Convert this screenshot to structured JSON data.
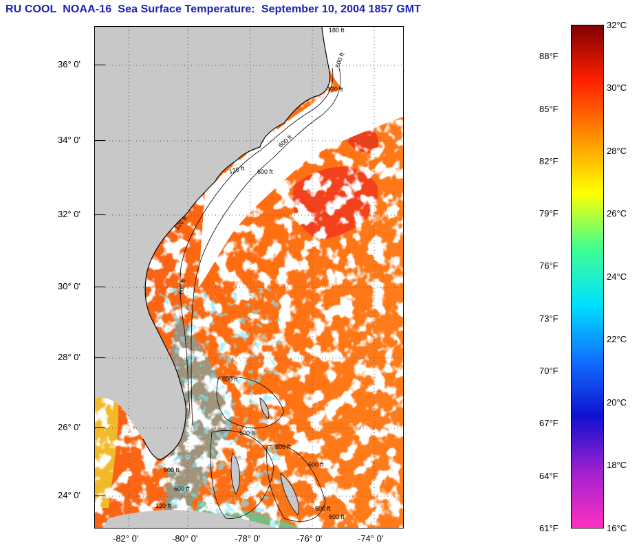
{
  "title": "RU COOL  NOAA-16  Sea Surface Temperature:  September 10, 2004 1857 GMT",
  "map": {
    "lat_range": [
      23,
      37
    ],
    "lon_range": [
      -83,
      -73
    ],
    "lat_labels": [
      {
        "value": 36,
        "text": "36° 0'"
      },
      {
        "value": 34,
        "text": "34° 0'"
      },
      {
        "value": 32,
        "text": "32° 0'"
      },
      {
        "value": 30,
        "text": "30° 0'"
      },
      {
        "value": 28,
        "text": "28° 0'"
      },
      {
        "value": 26,
        "text": "26° 0'"
      },
      {
        "value": 24,
        "text": "24° 0'"
      }
    ],
    "lon_labels": [
      {
        "value": -82,
        "text": "-82° 0'"
      },
      {
        "value": -80,
        "text": "-80° 0'"
      },
      {
        "value": -78,
        "text": "-78° 0'"
      },
      {
        "value": -76,
        "text": "-76° 0'"
      },
      {
        "value": -74,
        "text": "-74° 0'"
      }
    ],
    "contour_labels": [
      "180 ft",
      "600 ft",
      "120 ft",
      "600 ft",
      "120 ft",
      "600 ft",
      "120 ft",
      "600 ft",
      "600 ft",
      "600 ft",
      "600 ft",
      "600 ft",
      "600 ft",
      "600 ft",
      "120 ft",
      "600 ft",
      "600 ft"
    ],
    "colors": {
      "land": "#c8c8c8",
      "cloud": "#ffffff",
      "warm_water": "#ff6a10",
      "hot_water": "#f02020",
      "cool_water": "#30d0ff",
      "frame": "#000000"
    }
  },
  "colorbar": {
    "celsius_range": [
      16,
      32
    ],
    "fahrenheit_labels": [
      "88°F",
      "85°F",
      "82°F",
      "79°F",
      "76°F",
      "73°F",
      "70°F",
      "67°F",
      "64°F",
      "61°F"
    ],
    "fahrenheit_values": [
      88,
      85,
      82,
      79,
      76,
      73,
      70,
      67,
      64,
      61
    ],
    "celsius_labels": [
      "32°C",
      "30°C",
      "28°C",
      "26°C",
      "24°C",
      "22°C",
      "20°C",
      "18°C",
      "16°C"
    ],
    "celsius_values": [
      32,
      30,
      28,
      26,
      24,
      22,
      20,
      18,
      16
    ],
    "stops": [
      "#ff30c0",
      "#a020d0",
      "#1010d0",
      "#1070ff",
      "#00e0ff",
      "#40ff90",
      "#ffff00",
      "#ff9000",
      "#ff2000",
      "#800000"
    ]
  }
}
